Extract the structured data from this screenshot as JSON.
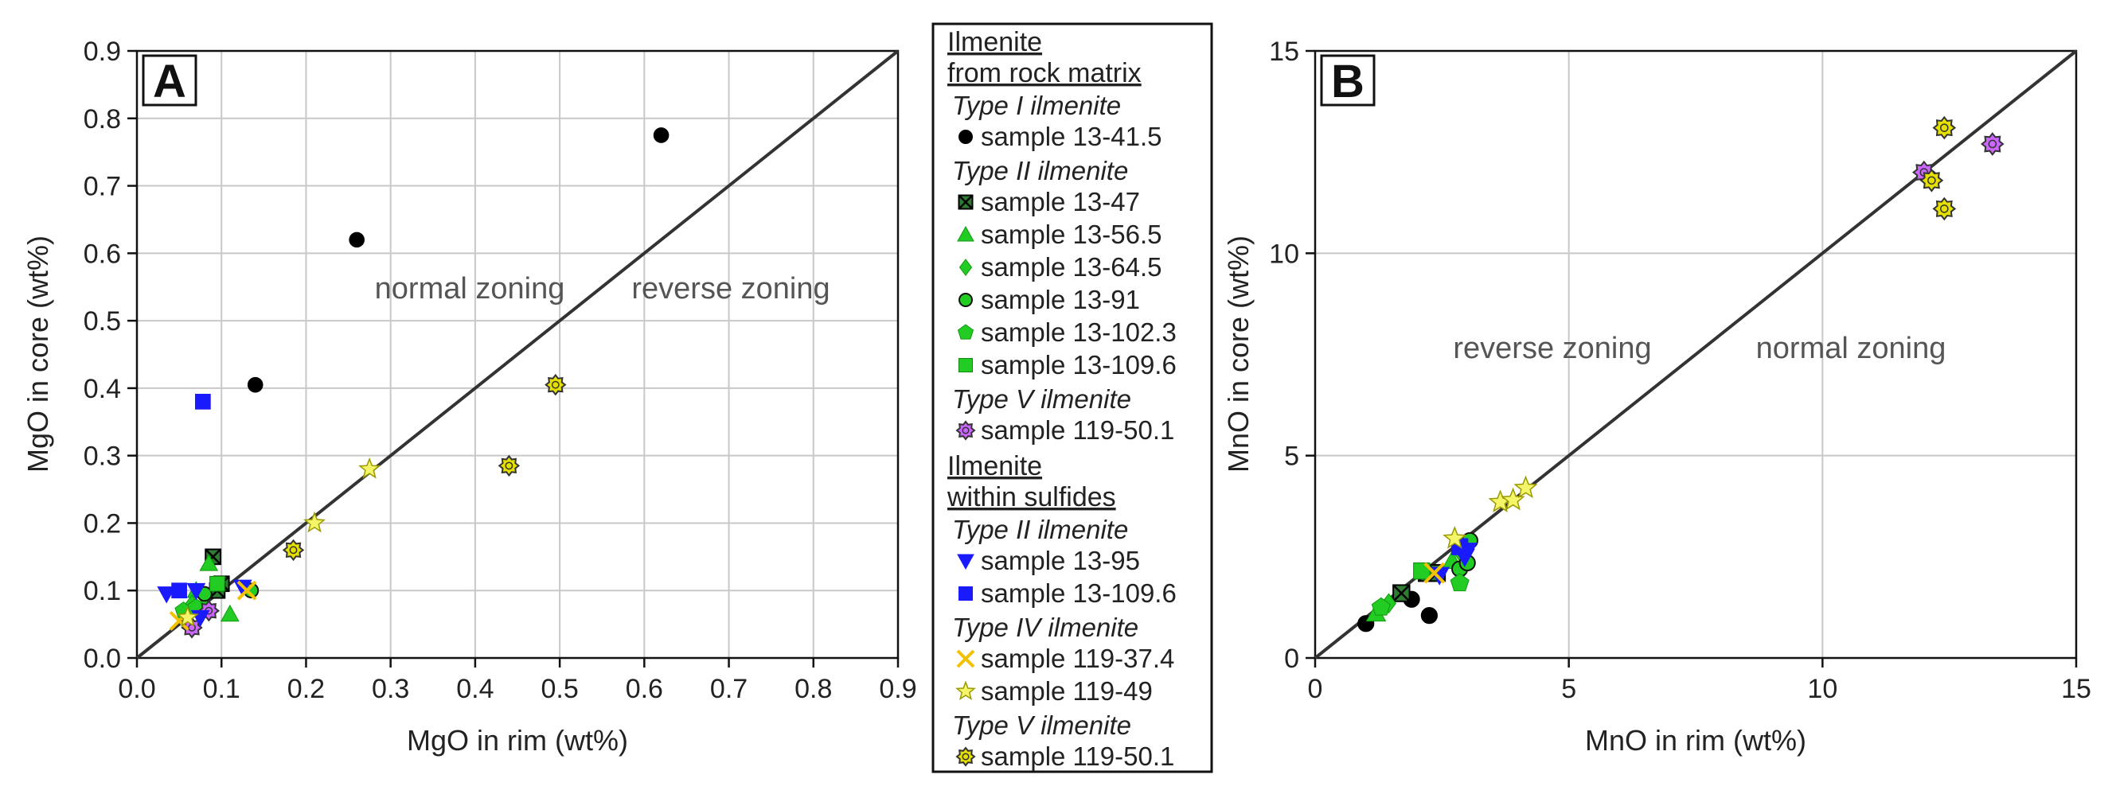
{
  "chart_data": [
    {
      "type": "scatter",
      "panel": "A",
      "xlabel": "MgO in rim (wt%)",
      "ylabel": "MgO in core (wt%)",
      "xlim": [
        0,
        0.9
      ],
      "ylim": [
        0,
        0.9
      ],
      "x_ticks": [
        "0.0",
        "0.1",
        "0.2",
        "0.3",
        "0.4",
        "0.5",
        "0.6",
        "0.7",
        "0.8",
        "0.9"
      ],
      "y_ticks": [
        "0.0",
        "0.1",
        "0.2",
        "0.3",
        "0.4",
        "0.5",
        "0.6",
        "0.7",
        "0.8",
        "0.9"
      ],
      "grid": true,
      "annotations": [
        "normal zoning",
        "reverse zoning"
      ],
      "series": [
        {
          "name": "sample 13-41.5",
          "marker": "circle",
          "color": "#000000",
          "points": [
            [
              0.14,
              0.405
            ],
            [
              0.26,
              0.62
            ],
            [
              0.62,
              0.775
            ]
          ]
        },
        {
          "name": "sample 13-47",
          "marker": "xsquare",
          "color": "#2e7d32",
          "points": [
            [
              0.09,
              0.15
            ],
            [
              0.1,
              0.11
            ],
            [
              0.095,
              0.1
            ]
          ]
        },
        {
          "name": "sample 13-56.5",
          "marker": "triangle",
          "color": "#22cc22",
          "points": [
            [
              0.085,
              0.14
            ],
            [
              0.11,
              0.065
            ],
            [
              0.07,
              0.1
            ]
          ]
        },
        {
          "name": "sample 13-64.5",
          "marker": "diamond",
          "color": "#22cc22",
          "points": [
            [
              0.08,
              0.09
            ],
            [
              0.065,
              0.08
            ]
          ]
        },
        {
          "name": "sample 13-91",
          "marker": "circle",
          "color": "#22cc22",
          "points": [
            [
              0.135,
              0.1
            ],
            [
              0.08,
              0.095
            ]
          ]
        },
        {
          "name": "sample 13-102.3",
          "marker": "pentagon",
          "color": "#22cc22",
          "points": [
            [
              0.055,
              0.07
            ],
            [
              0.07,
              0.075
            ]
          ]
        },
        {
          "name": "sample 13-109.6",
          "marker": "square",
          "color": "#22cc22",
          "points": [
            [
              0.095,
              0.11
            ]
          ]
        },
        {
          "name": "sample 119-50.1",
          "marker": "flower",
          "color": "#cc66ff",
          "points": [
            [
              0.065,
              0.045
            ],
            [
              0.085,
              0.07
            ]
          ]
        },
        {
          "name": "sample 13-95",
          "marker": "tridown",
          "color": "#1a1aff",
          "points": [
            [
              0.035,
              0.095
            ],
            [
              0.07,
              0.1
            ],
            [
              0.125,
              0.105
            ],
            [
              0.075,
              0.06
            ]
          ]
        },
        {
          "name": "sample 13-109.6",
          "marker": "square",
          "color": "#1a1aff",
          "points": [
            [
              0.078,
              0.38
            ],
            [
              0.05,
              0.1
            ]
          ]
        },
        {
          "name": "sample 119-37.4",
          "marker": "xcross",
          "color": "#f2c200",
          "points": [
            [
              0.05,
              0.055
            ],
            [
              0.13,
              0.1
            ]
          ]
        },
        {
          "name": "sample 119-49",
          "marker": "star",
          "color": "#f5f56a",
          "points": [
            [
              0.275,
              0.28
            ],
            [
              0.21,
              0.2
            ],
            [
              0.06,
              0.06
            ]
          ]
        },
        {
          "name": "sample 119-50.1",
          "marker": "sun",
          "color": "#e6e000",
          "points": [
            [
              0.495,
              0.405
            ],
            [
              0.44,
              0.285
            ],
            [
              0.185,
              0.16
            ]
          ]
        }
      ]
    },
    {
      "type": "scatter",
      "panel": "B",
      "xlabel": "MnO in rim (wt%)",
      "ylabel": "MnO in core (wt%)",
      "xlim": [
        0,
        15
      ],
      "ylim": [
        0,
        15
      ],
      "x_ticks": [
        "0",
        "5",
        "10",
        "15"
      ],
      "y_ticks": [
        "0",
        "5",
        "10",
        "15"
      ],
      "grid": true,
      "annotations": [
        "reverse zoning",
        "normal zoning"
      ],
      "series": [
        {
          "name": "sample 13-41.5",
          "marker": "circle",
          "color": "#000000",
          "points": [
            [
              1.0,
              0.85
            ],
            [
              1.9,
              1.45
            ],
            [
              2.25,
              1.05
            ]
          ]
        },
        {
          "name": "sample 13-47",
          "marker": "xsquare",
          "color": "#2e7d32",
          "points": [
            [
              1.7,
              1.6
            ],
            [
              2.2,
              2.1
            ],
            [
              2.4,
              2.1
            ]
          ]
        },
        {
          "name": "sample 13-56.5",
          "marker": "triangle",
          "color": "#22cc22",
          "points": [
            [
              1.2,
              1.1
            ],
            [
              2.7,
              2.4
            ]
          ]
        },
        {
          "name": "sample 13-64.5",
          "marker": "diamond",
          "color": "#22cc22",
          "points": [
            [
              1.45,
              1.35
            ],
            [
              2.9,
              2.55
            ]
          ]
        },
        {
          "name": "sample 13-91",
          "marker": "circle",
          "color": "#22cc22",
          "points": [
            [
              2.85,
              2.2
            ],
            [
              3.05,
              2.9
            ],
            [
              3.0,
              2.35
            ]
          ]
        },
        {
          "name": "sample 13-102.3",
          "marker": "pentagon",
          "color": "#22cc22",
          "points": [
            [
              1.3,
              1.25
            ],
            [
              2.85,
              1.85
            ]
          ]
        },
        {
          "name": "sample 13-109.6",
          "marker": "square",
          "color": "#22cc22",
          "points": [
            [
              2.1,
              2.15
            ]
          ]
        },
        {
          "name": "sample 119-50.1",
          "marker": "flower",
          "color": "#cc66ff",
          "points": [
            [
              12.0,
              12.0
            ],
            [
              13.35,
              12.7
            ]
          ]
        },
        {
          "name": "sample 13-95",
          "marker": "tridown",
          "color": "#1a1aff",
          "points": [
            [
              2.95,
              2.5
            ],
            [
              3.0,
              2.65
            ],
            [
              2.45,
              2.05
            ]
          ]
        },
        {
          "name": "sample 13-109.6",
          "marker": "square",
          "color": "#1a1aff",
          "points": [
            [
              2.85,
              2.75
            ]
          ]
        },
        {
          "name": "sample 119-37.4",
          "marker": "xcross",
          "color": "#f2c200",
          "points": [
            [
              2.35,
              2.1
            ]
          ]
        },
        {
          "name": "sample 119-49",
          "marker": "star",
          "color": "#f5f56a",
          "points": [
            [
              3.65,
              3.85
            ],
            [
              3.9,
              3.9
            ],
            [
              4.15,
              4.2
            ],
            [
              2.75,
              2.95
            ]
          ]
        },
        {
          "name": "sample 119-50.1",
          "marker": "sun",
          "color": "#e6e000",
          "points": [
            [
              12.4,
              13.1
            ],
            [
              12.15,
              11.8
            ],
            [
              12.4,
              11.1
            ]
          ]
        }
      ]
    }
  ],
  "legend": {
    "sections": [
      {
        "heading": [
          "Ilmenite",
          "from rock matrix"
        ],
        "groups": [
          {
            "type": "Type I ilmenite",
            "entries": [
              {
                "label": "sample 13-41.5",
                "marker": "circle",
                "color": "#000000"
              }
            ]
          },
          {
            "type": "Type II ilmenite",
            "entries": [
              {
                "label": "sample 13-47",
                "marker": "xsquare",
                "color": "#2e7d32"
              },
              {
                "label": "sample 13-56.5",
                "marker": "triangle",
                "color": "#22cc22"
              },
              {
                "label": "sample 13-64.5",
                "marker": "diamond",
                "color": "#22cc22"
              },
              {
                "label": "sample 13-91",
                "marker": "circle",
                "color": "#22cc22"
              },
              {
                "label": "sample 13-102.3",
                "marker": "pentagon",
                "color": "#22cc22"
              },
              {
                "label": "sample 13-109.6",
                "marker": "square",
                "color": "#22cc22"
              }
            ]
          },
          {
            "type": "Type V ilmenite",
            "entries": [
              {
                "label": "sample 119-50.1",
                "marker": "flower",
                "color": "#cc66ff"
              }
            ]
          }
        ]
      },
      {
        "heading": [
          "Ilmenite",
          "within sulfides"
        ],
        "groups": [
          {
            "type": "Type II ilmenite",
            "entries": [
              {
                "label": "sample 13-95",
                "marker": "tridown",
                "color": "#1a1aff"
              },
              {
                "label": "sample 13-109.6",
                "marker": "square",
                "color": "#1a1aff"
              }
            ]
          },
          {
            "type": "Type IV ilmenite",
            "entries": [
              {
                "label": "sample 119-37.4",
                "marker": "xcross",
                "color": "#f2c200"
              },
              {
                "label": "sample 119-49",
                "marker": "star",
                "color": "#f5f56a"
              }
            ]
          },
          {
            "type": "Type V ilmenite",
            "entries": [
              {
                "label": "sample 119-50.1",
                "marker": "sun",
                "color": "#e6e000"
              }
            ]
          }
        ]
      }
    ]
  }
}
